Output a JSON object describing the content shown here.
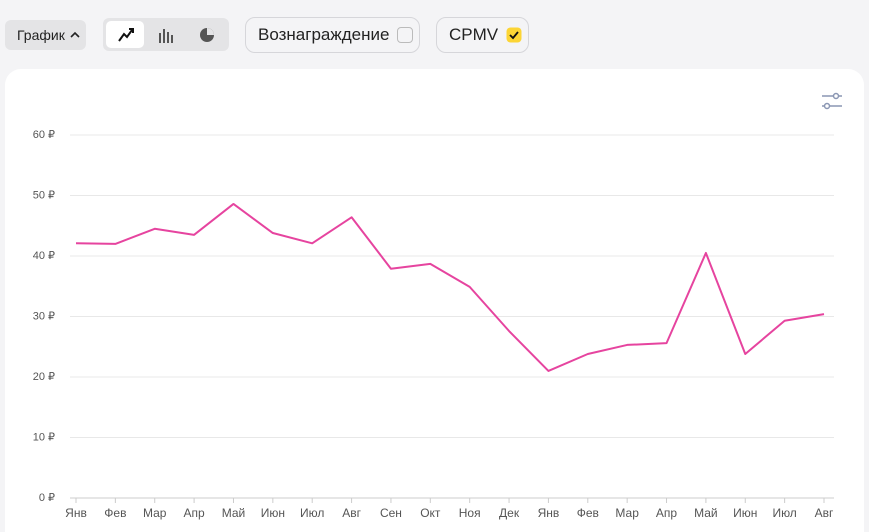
{
  "toolbar": {
    "view_button": "График",
    "reward_label": "Вознаграждение",
    "cpmv_label": "CPMV"
  },
  "chart_data": {
    "type": "line",
    "categories": [
      "Янв",
      "Фев",
      "Мар",
      "Апр",
      "Май",
      "Июн",
      "Июл",
      "Авг",
      "Сен",
      "Окт",
      "Ноя",
      "Дек",
      "Янв",
      "Фев",
      "Мар",
      "Апр",
      "Май",
      "Июн",
      "Июл",
      "Авг"
    ],
    "series": [
      {
        "name": "CPMV",
        "color": "#e6449f",
        "values": [
          42.1,
          42.0,
          44.5,
          43.5,
          48.6,
          43.8,
          42.1,
          46.4,
          37.9,
          38.7,
          34.9,
          27.6,
          21.0,
          23.8,
          25.3,
          25.6,
          40.5,
          23.8,
          29.3,
          30.4
        ]
      }
    ],
    "ylim": [
      0,
      60
    ],
    "yticks": [
      {
        "value": 0,
        "label": "0 ₽"
      },
      {
        "value": 10,
        "label": "10 ₽"
      },
      {
        "value": 20,
        "label": "20 ₽"
      },
      {
        "value": 30,
        "label": "30 ₽"
      },
      {
        "value": 40,
        "label": "40 ₽"
      },
      {
        "value": 50,
        "label": "50 ₽"
      },
      {
        "value": 60,
        "label": "60 ₽"
      }
    ],
    "grid": true
  }
}
